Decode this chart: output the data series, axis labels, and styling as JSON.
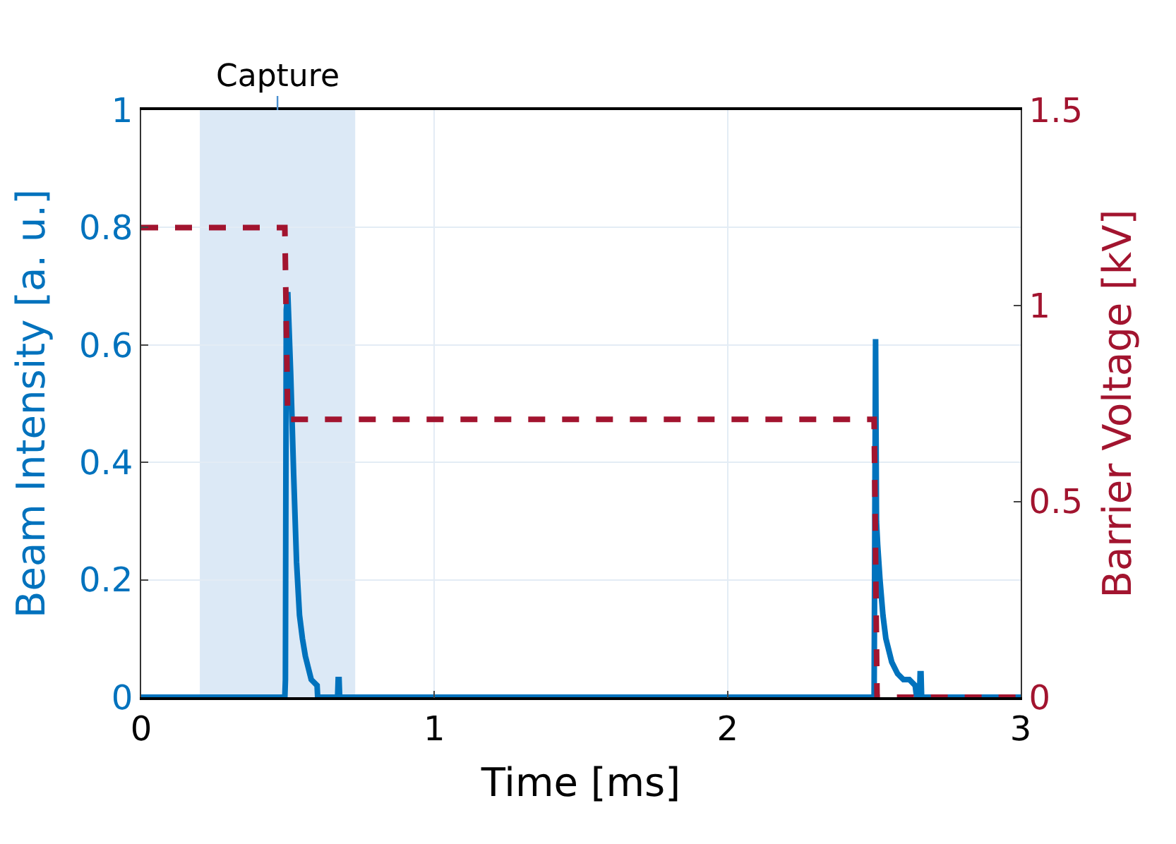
{
  "chart_data": {
    "type": "line",
    "xlabel": "Time [ms]",
    "ylabel": "Beam Intensity [a. u.]",
    "y2label": "Barrier Voltage [kV]",
    "series": [
      {
        "color": "#0072bd",
        "line_style": "solid",
        "x": [
          0,
          0.49,
          0.492,
          0.495,
          0.5,
          0.51,
          0.52,
          0.53,
          0.54,
          0.55,
          0.56,
          0.57,
          0.58,
          0.6,
          0.602,
          0.67,
          0.672,
          0.675,
          0.677,
          2.5,
          2.505,
          2.508,
          2.512,
          2.52,
          2.53,
          2.54,
          2.56,
          2.58,
          2.6,
          2.62,
          2.64,
          2.645,
          2.655,
          2.657,
          2.66,
          2.662,
          3
        ],
        "values": [
          0,
          0,
          0.03,
          0.66,
          0.69,
          0.55,
          0.38,
          0.23,
          0.14,
          0.1,
          0.07,
          0.05,
          0.03,
          0.02,
          0,
          0,
          0.03,
          0.03,
          0,
          0,
          0.61,
          0.3,
          0.26,
          0.2,
          0.14,
          0.1,
          0.06,
          0.04,
          0.03,
          0.03,
          0.02,
          0,
          0,
          0.04,
          0.04,
          0,
          0
        ]
      },
      {
        "type": "line",
        "axis": "y2",
        "color": "#a2142f",
        "line_style": "dashed",
        "x": [
          0,
          0.49,
          0.5,
          2.5,
          2.51,
          3
        ],
        "values": [
          1.2,
          1.2,
          0.71,
          0.71,
          0,
          0
        ]
      }
    ],
    "xlim": [
      0,
      3
    ],
    "xticks": [
      0,
      1,
      2,
      3
    ],
    "ylim": [
      0,
      1
    ],
    "yticks": [
      0,
      0.2,
      0.4,
      0.6,
      0.8,
      1
    ],
    "y2lim": [
      0,
      1.5
    ],
    "y2ticks": [
      0,
      0.5,
      1,
      1.5
    ],
    "bands": [
      {
        "axis": "x",
        "from": 0.2,
        "to": 0.73,
        "label": "Capture",
        "color": "#d6e5f5"
      }
    ],
    "grid": true,
    "marker": "none"
  }
}
